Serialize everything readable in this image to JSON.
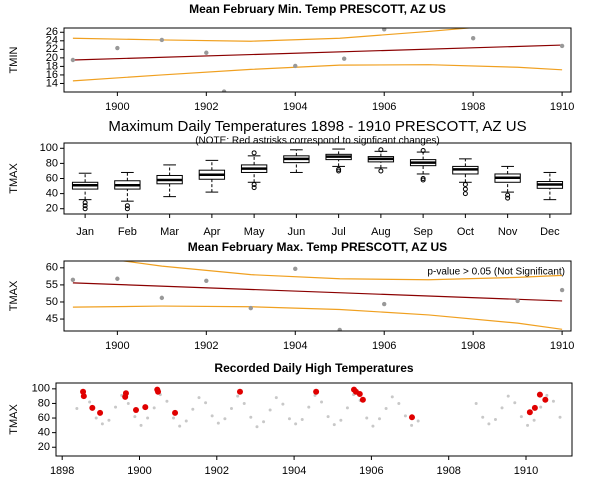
{
  "chart_data": [
    {
      "type": "scatter",
      "title": "Mean February Min. Temp PRESCOTT, AZ US",
      "y_label": "TMIN",
      "x": [
        1899,
        1900,
        1901,
        1902,
        1902.4,
        1904,
        1905.1,
        1906,
        1908,
        1910
      ],
      "values": [
        19.5,
        22.3,
        24.2,
        21.2,
        12.1,
        18.1,
        19.8,
        26.7,
        24.6,
        22.8
      ],
      "color": "#999999",
      "trend": {
        "x": [
          1899,
          1910
        ],
        "values": [
          19.5,
          23.0
        ],
        "color": "#8b0000"
      },
      "bands": [
        {
          "x": [
            1899,
            1901,
            1903,
            1905,
            1907,
            1909,
            1910
          ],
          "values": [
            24.6,
            24.2,
            23.9,
            24.6,
            26.2,
            28.0,
            29.0
          ],
          "color": "#f0a020"
        },
        {
          "x": [
            1899,
            1901,
            1903,
            1905,
            1907,
            1909,
            1910
          ],
          "values": [
            14.6,
            16.0,
            17.3,
            18.3,
            18.4,
            17.8,
            17.2
          ],
          "color": "#f0a020"
        }
      ],
      "xlim": [
        1898.8,
        1910.2
      ],
      "xticks": [
        1900,
        1902,
        1904,
        1906,
        1908,
        1910
      ],
      "ylim": [
        12,
        27
      ],
      "yticks": [
        14,
        16,
        18,
        20,
        22,
        24,
        26
      ]
    },
    {
      "type": "box",
      "title": "Maximum Daily Temperatures 1898 - 1910 PRESCOTT, AZ US",
      "subtitle": "(NOTE: Red astrisks correspond to signficant changes)",
      "y_label": "TMAX",
      "categories": [
        "Jan",
        "Feb",
        "Mar",
        "Apr",
        "May",
        "Jun",
        "Jul",
        "Aug",
        "Sep",
        "Oct",
        "Nov",
        "Dec"
      ],
      "boxes": [
        {
          "low": 32,
          "q1": 46,
          "median": 51,
          "q3": 55,
          "high": 67,
          "outliers": [
            28,
            24,
            20
          ]
        },
        {
          "low": 30,
          "q1": 46,
          "median": 51,
          "q3": 57,
          "high": 68,
          "outliers": [
            24,
            20
          ]
        },
        {
          "low": 36,
          "q1": 53,
          "median": 58,
          "q3": 64,
          "high": 78,
          "outliers": []
        },
        {
          "low": 42,
          "q1": 59,
          "median": 65,
          "q3": 71,
          "high": 84,
          "outliers": []
        },
        {
          "low": 55,
          "q1": 68,
          "median": 73,
          "q3": 78,
          "high": 90,
          "outliers": [
            94,
            52,
            48
          ]
        },
        {
          "low": 68,
          "q1": 81,
          "median": 86,
          "q3": 90,
          "high": 98,
          "outliers": []
        },
        {
          "low": 76,
          "q1": 85,
          "median": 89,
          "q3": 92,
          "high": 99,
          "outliers": [
            72,
            70
          ]
        },
        {
          "low": 74,
          "q1": 82,
          "median": 86,
          "q3": 89,
          "high": 96,
          "outliers": [
            70,
            98
          ]
        },
        {
          "low": 66,
          "q1": 77,
          "median": 81,
          "q3": 85,
          "high": 95,
          "outliers": [
            60,
            58,
            97
          ]
        },
        {
          "low": 55,
          "q1": 66,
          "median": 72,
          "q3": 76,
          "high": 86,
          "outliers": [
            52,
            46,
            40
          ]
        },
        {
          "low": 42,
          "q1": 55,
          "median": 61,
          "q3": 66,
          "high": 76,
          "outliers": [
            38,
            34
          ]
        },
        {
          "low": 32,
          "q1": 47,
          "median": 52,
          "q3": 56,
          "high": 68,
          "outliers": []
        }
      ],
      "color": "#ffffff",
      "ylim": [
        13,
        107
      ],
      "yticks": [
        20,
        40,
        60,
        80,
        100
      ]
    },
    {
      "type": "scatter",
      "title": "Mean February Max. Temp PRESCOTT, AZ US",
      "y_label": "TMAX",
      "annotation": "p-value > 0.05 (Not Significant)",
      "x": [
        1899,
        1900,
        1901,
        1902,
        1903,
        1904,
        1905,
        1906,
        1909,
        1910
      ],
      "values": [
        56.5,
        56.8,
        51.2,
        56.2,
        48.2,
        59.7,
        41.8,
        49.4,
        50.3,
        53.5
      ],
      "color": "#999999",
      "trend": {
        "x": [
          1899,
          1910
        ],
        "values": [
          55.6,
          50.3
        ],
        "color": "#8b0000"
      },
      "bands": [
        {
          "x": [
            1899,
            1901,
            1903,
            1905,
            1907,
            1909,
            1910
          ],
          "values": [
            64.0,
            60.5,
            58.0,
            56.8,
            56.5,
            57.2,
            57.8
          ],
          "color": "#f0a020"
        },
        {
          "x": [
            1899,
            1901,
            1903,
            1905,
            1907,
            1909,
            1910
          ],
          "values": [
            48.5,
            48.8,
            48.6,
            47.8,
            46.2,
            43.8,
            42.0
          ],
          "color": "#f0a020"
        }
      ],
      "xlim": [
        1898.8,
        1910.2
      ],
      "xticks": [
        1900,
        1902,
        1904,
        1906,
        1908,
        1910
      ],
      "ylim": [
        41.5,
        62
      ],
      "yticks": [
        45,
        50,
        55,
        60
      ]
    },
    {
      "type": "scatter",
      "title": "Recorded Daily High Temperatures",
      "y_label": "TMAX",
      "x": [
        1898.38,
        1898.54,
        1898.71,
        1898.88,
        1899.04,
        1899.21,
        1899.38,
        1899.54,
        1899.71,
        1899.88,
        1900.04,
        1900.21,
        1900.38,
        1900.54,
        1900.71,
        1900.88,
        1901.04,
        1901.21,
        1901.38,
        1901.54,
        1901.71,
        1901.88,
        1902.04,
        1902.21,
        1902.38,
        1902.54,
        1902.71,
        1902.88,
        1903.04,
        1903.21,
        1903.38,
        1903.54,
        1903.71,
        1903.88,
        1904.04,
        1904.21,
        1904.38,
        1904.54,
        1904.71,
        1904.88,
        1905.04,
        1905.21,
        1905.38,
        1905.54,
        1905.71,
        1905.88,
        1906.04,
        1906.21,
        1906.38,
        1906.54,
        1906.71,
        1906.88,
        1907.04,
        1907.21,
        1908.71,
        1908.88,
        1909.04,
        1909.21,
        1909.38,
        1909.54,
        1909.71,
        1909.88,
        1910.04,
        1910.21,
        1910.38,
        1910.54,
        1910.71,
        1910.88
      ],
      "values": [
        73,
        90,
        82,
        60,
        52,
        57,
        75,
        91,
        80,
        62,
        50,
        60,
        74,
        92,
        83,
        60,
        49,
        56,
        72,
        88,
        81,
        63,
        53,
        59,
        73,
        90,
        80,
        61,
        48,
        55,
        71,
        88,
        79,
        59,
        52,
        58,
        75,
        91,
        82,
        62,
        51,
        57,
        74,
        92,
        84,
        60,
        49,
        59,
        73,
        89,
        80,
        63,
        50,
        56,
        80,
        61,
        52,
        58,
        74,
        90,
        81,
        62,
        50,
        57,
        75,
        91,
        83,
        61
      ],
      "color": "#c8c8c8",
      "highlight": {
        "x": [
          1898.54,
          1898.56,
          1898.78,
          1898.98,
          1899.63,
          1899.65,
          1899.91,
          1900.15,
          1900.46,
          1900.48,
          1900.92,
          1902.6,
          1904.57,
          1905.55,
          1905.6,
          1905.7,
          1905.78,
          1907.05,
          1910.1,
          1910.23,
          1910.36,
          1910.5
        ],
        "values": [
          96,
          90,
          74,
          67,
          89,
          94,
          71,
          75,
          99,
          96,
          67,
          96,
          96,
          99,
          96,
          93,
          85,
          61,
          68,
          74,
          92,
          85
        ],
        "color": "#e00000"
      },
      "xlim": [
        1897.84,
        1911.19
      ],
      "xticks": [
        1898,
        1900,
        1902,
        1904,
        1906,
        1908,
        1910
      ],
      "ylim": [
        8,
        108
      ],
      "yticks": [
        20,
        40,
        60,
        80,
        100
      ]
    }
  ]
}
